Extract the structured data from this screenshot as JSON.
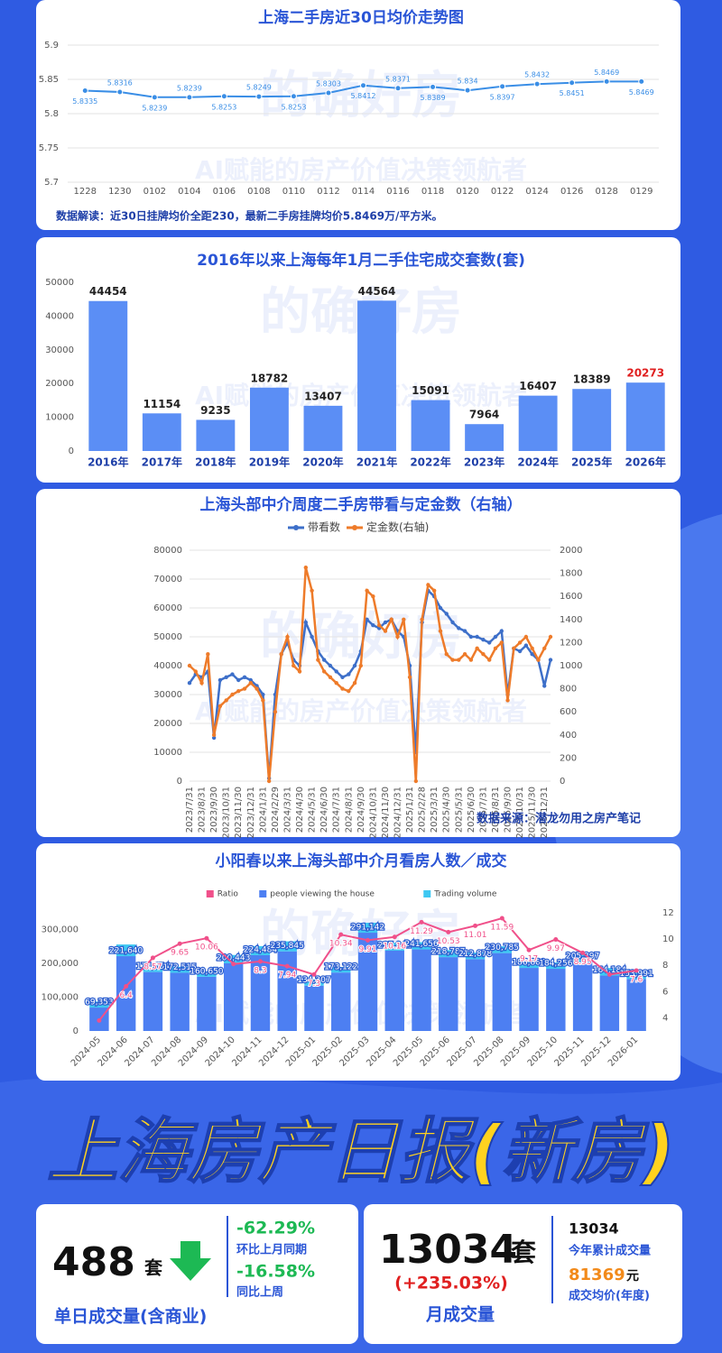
{
  "watermark": [
    "的确好房",
    "AI赋能的房产价值决策领航者"
  ],
  "chart_data": [
    {
      "type": "line",
      "title": "上海二手房近30日均价走势图",
      "categories": [
        "1228",
        "1230",
        "0102",
        "0104",
        "0106",
        "0108",
        "0110",
        "0112",
        "0114",
        "0116",
        "0118",
        "0120",
        "0122",
        "0124",
        "0126",
        "0128",
        "0129"
      ],
      "values": [
        5.8335,
        5.8316,
        5.8239,
        5.8239,
        5.8253,
        5.8249,
        5.8253,
        5.8303,
        5.8412,
        5.8371,
        5.8389,
        5.834,
        5.8397,
        5.8432,
        5.8451,
        5.8469,
        5.8469
      ],
      "color": "#3a8ee6",
      "ylim": [
        5.7,
        5.9
      ],
      "yticks": [
        5.7,
        5.75,
        5.8,
        5.85,
        5.9
      ],
      "grid": true,
      "annotation": "数据解读：近30日挂牌均价全距230，最新二手房挂牌均价5.8469万/平方米。"
    },
    {
      "type": "bar",
      "title": "2016年以来上海每年1月二手住宅成交套数(套)",
      "categories": [
        "2016年",
        "2017年",
        "2018年",
        "2019年",
        "2020年",
        "2021年",
        "2022年",
        "2023年",
        "2024年",
        "2025年",
        "2026年"
      ],
      "values": [
        44454,
        11154,
        9235,
        18782,
        13407,
        44564,
        15091,
        7964,
        16407,
        18389,
        20273
      ],
      "color": "#5b8ef5",
      "label_colors": [
        "#222222",
        "#222222",
        "#222222",
        "#222222",
        "#222222",
        "#222222",
        "#222222",
        "#222222",
        "#222222",
        "#222222",
        "#e02020"
      ],
      "ylim": [
        0,
        50000
      ],
      "yticks": [
        0,
        10000,
        20000,
        30000,
        40000,
        50000
      ],
      "grid": false
    },
    {
      "type": "dual_line",
      "title": "上海头部中介周度二手房带看与定金数（右轴）",
      "categories": [
        "2023/7/31",
        null,
        "2023/8/31",
        null,
        "2023/9/30",
        null,
        "2023/10/31",
        null,
        "2023/11/30",
        null,
        "2023/12/31",
        null,
        "2024/1/31",
        null,
        "2024/2/29",
        null,
        "2024/3/31",
        null,
        "2024/4/30",
        null,
        "2024/5/31",
        null,
        "2024/6/30",
        null,
        "2024/7/31",
        null,
        "2024/8/31",
        null,
        "2024/9/30",
        null,
        "2024/10/31",
        null,
        "2024/11/30",
        null,
        "2024/12/31",
        null,
        "2025/1/31",
        null,
        "2025/2/28",
        null,
        "2025/3/31",
        null,
        "2025/4/30",
        null,
        "2025/5/31",
        null,
        "2025/6/30",
        null,
        "2025/7/31",
        null,
        "2025/8/31",
        null,
        "2025/9/30",
        null,
        "2025/10/31",
        null,
        "2025/11/30",
        null,
        "2025/12/31",
        null
      ],
      "series": [
        {
          "name": "带看数",
          "color": "#3d6fc9",
          "values": [
            34000,
            37000,
            36000,
            38000,
            15000,
            35000,
            36000,
            37000,
            35000,
            36000,
            35000,
            33000,
            30000,
            1000,
            30000,
            44000,
            48000,
            42000,
            40000,
            55000,
            50000,
            45000,
            42000,
            40000,
            38000,
            36000,
            37000,
            40000,
            45000,
            56000,
            54000,
            53000,
            55000,
            56000,
            52000,
            50000,
            40000,
            10000,
            55000,
            66000,
            64000,
            60000,
            58000,
            55000,
            53000,
            52000,
            50000,
            50000,
            49000,
            48000,
            50000,
            52000,
            30000,
            46000,
            45000,
            47000,
            44000,
            42000,
            33000,
            42000
          ]
        },
        {
          "name": "定金数(右轴)",
          "color": "#ee7b2a",
          "axis": "y2",
          "values": [
            1000,
            950,
            850,
            1100,
            400,
            650,
            700,
            750,
            780,
            800,
            850,
            800,
            700,
            0,
            600,
            1100,
            1250,
            1000,
            950,
            1850,
            1650,
            1050,
            950,
            900,
            850,
            800,
            780,
            850,
            1000,
            1650,
            1600,
            1350,
            1300,
            1400,
            1250,
            1400,
            900,
            0,
            1400,
            1700,
            1650,
            1300,
            1100,
            1050,
            1050,
            1100,
            1050,
            1150,
            1100,
            1050,
            1150,
            1200,
            700,
            1150,
            1200,
            1250,
            1150,
            1050,
            1150,
            1250
          ]
        }
      ],
      "ylim": [
        0,
        80000
      ],
      "yticks": [
        0,
        10000,
        20000,
        30000,
        40000,
        50000,
        60000,
        70000,
        80000
      ],
      "y2lim": [
        0,
        2000
      ],
      "y2ticks": [
        0,
        200,
        400,
        600,
        800,
        1000,
        1200,
        1400,
        1600,
        1800,
        2000
      ],
      "grid": true,
      "legend": "top",
      "annotation": "数据来源：潜龙勿用之房产笔记"
    },
    {
      "type": "combo",
      "title": "小阳春以来上海头部中介月看房人数／成交",
      "categories": [
        "2024-05",
        "2024-06",
        "2024-07",
        "2024-08",
        "2024-09",
        "2024-10",
        "2024-11",
        "2024-12",
        "2025-01",
        "2025-02",
        "2025-03",
        "2025-04",
        "2025-05",
        "2025-06",
        "2025-07",
        "2025-08",
        "2025-09",
        "2025-10",
        "2025-11",
        "2025-12",
        "2026-01"
      ],
      "series": [
        {
          "name": "Ratio",
          "color": "#f0508a",
          "axis": "y2",
          "values": [
            3.8,
            6.4,
            8.57,
            9.65,
            10.06,
            8.1,
            8.3,
            7.94,
            7.3,
            10.34,
            9.91,
            10.16,
            11.29,
            10.53,
            11.01,
            11.59,
            9.17,
            9.97,
            8.95,
            7.3,
            7.6
          ],
          "value_labels": [
            null,
            "6.4",
            "8.57",
            "9.65",
            "10.06",
            null,
            "8.3",
            "7.94",
            "7.3",
            "10.34",
            "9.91",
            "10.16",
            "11.29",
            "10.53",
            "11.01",
            "11.59",
            "9.17",
            "9.97",
            "8.95",
            null,
            "7.6"
          ]
        },
        {
          "name": "people viewing the house",
          "color": "#4d7ff2",
          "values": [
            69353,
            221640,
            174654,
            172515,
            160650,
            200443,
            224484,
            235845,
            134307,
            173122,
            291142,
            237841,
            241656,
            218787,
            212878,
            230785,
            186880,
            184256,
            205397,
            164184,
            153991
          ],
          "value_labels": [
            "69,353",
            "221,640",
            "174,654",
            "172,515",
            "160,650",
            "200,443",
            "224,484",
            "235,845",
            "134,307",
            "173,122",
            "291,142",
            "237,841",
            "241,656",
            "218,787",
            "212,878",
            "230,785",
            "186,880",
            "184,256",
            "205,397",
            "164,184",
            "153,991"
          ]
        },
        {
          "name": "Trading volume",
          "color": "#3ec8f2",
          "values": [
            18000,
            34600,
            20400,
            17900,
            16000,
            24700,
            27000,
            29700,
            18400,
            16700,
            29400,
            23400,
            21400,
            20800,
            19300,
            19900,
            20400,
            18500,
            22900,
            22500,
            20300
          ]
        }
      ],
      "stacked": true,
      "ylim": [
        0,
        350000
      ],
      "yticks": [
        0,
        {
          "value": 100000,
          "label": "100,000"
        },
        {
          "value": 200000,
          "label": "200,000"
        },
        {
          "value": 300000,
          "label": "300,000"
        }
      ],
      "y2lim": [
        3,
        12
      ],
      "y2ticks": [
        4,
        6,
        8,
        10,
        12
      ],
      "legend": "top"
    }
  ],
  "report": {
    "headline": "上海房产日报(新房)",
    "daily": {
      "value": "488",
      "unit": "套",
      "mom": "-62.29%",
      "mom_label": "环比上月同期",
      "wow": "-16.58%",
      "wow_label": "同比上周",
      "caption": "单日成交量(含商业)"
    },
    "monthly": {
      "value": "13034",
      "unit": "套",
      "change": "(+235.03%)",
      "caption": "月成交量",
      "ytd": "13034",
      "ytd_label": "今年累计成交量",
      "avg_price": "81369",
      "price_unit": "元",
      "price_label": "成交均价(年度)"
    }
  }
}
